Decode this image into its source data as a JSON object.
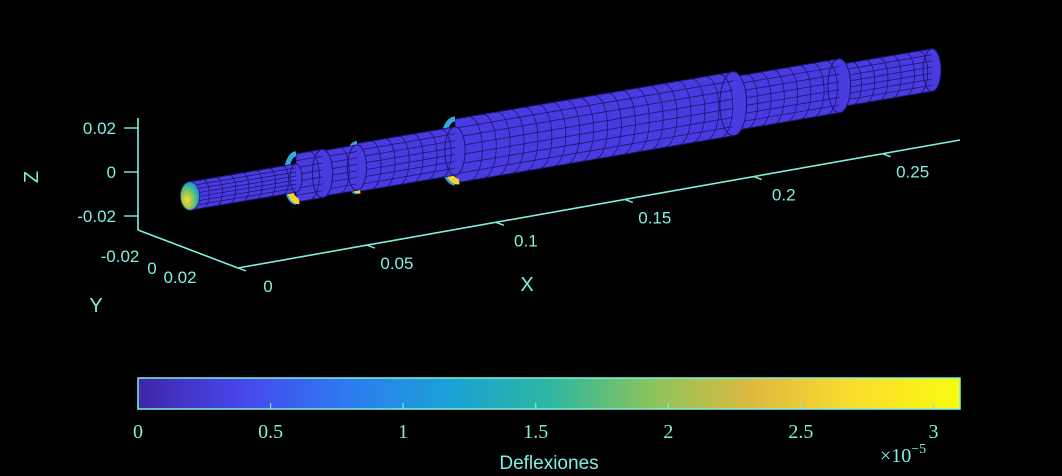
{
  "chart_data": {
    "type": "surface3d",
    "title": "",
    "xlabel": "X",
    "ylabel": "Y",
    "zlabel": "Z",
    "x_ticks": [
      "0",
      "0.05",
      "0.1",
      "0.15",
      "0.2",
      "0.25"
    ],
    "y_ticks": [
      "-0.02",
      "0",
      "0.02"
    ],
    "z_ticks": [
      "0.02",
      "0",
      "-0.02"
    ],
    "xlim": [
      0,
      0.28
    ],
    "shaft_sections": [
      {
        "x_start": 0.0,
        "x_end": 0.04,
        "diameter": 0.02
      },
      {
        "x_start": 0.04,
        "x_end": 0.05,
        "diameter": 0.034
      },
      {
        "x_start": 0.05,
        "x_end": 0.063,
        "diameter": 0.032
      },
      {
        "x_start": 0.063,
        "x_end": 0.1,
        "diameter": 0.034
      },
      {
        "x_start": 0.1,
        "x_end": 0.205,
        "diameter": 0.045
      },
      {
        "x_start": 0.205,
        "x_end": 0.245,
        "diameter": 0.038
      },
      {
        "x_start": 0.245,
        "x_end": 0.28,
        "diameter": 0.03
      }
    ],
    "colorbar": {
      "label": "Deflexiones",
      "ticks": [
        "0",
        "0.5",
        "1",
        "1.5",
        "2",
        "2.5",
        "3"
      ],
      "range": [
        0,
        3.1
      ],
      "multiplier_base": "×10",
      "multiplier_exp": "−5",
      "colormap": "parula",
      "colors": [
        "#3e26a8",
        "#4746eb",
        "#2f79f1",
        "#1aa0d7",
        "#2cb7a2",
        "#8ac45b",
        "#e0b93f",
        "#fbdd2b",
        "#f9fb0e"
      ]
    }
  }
}
